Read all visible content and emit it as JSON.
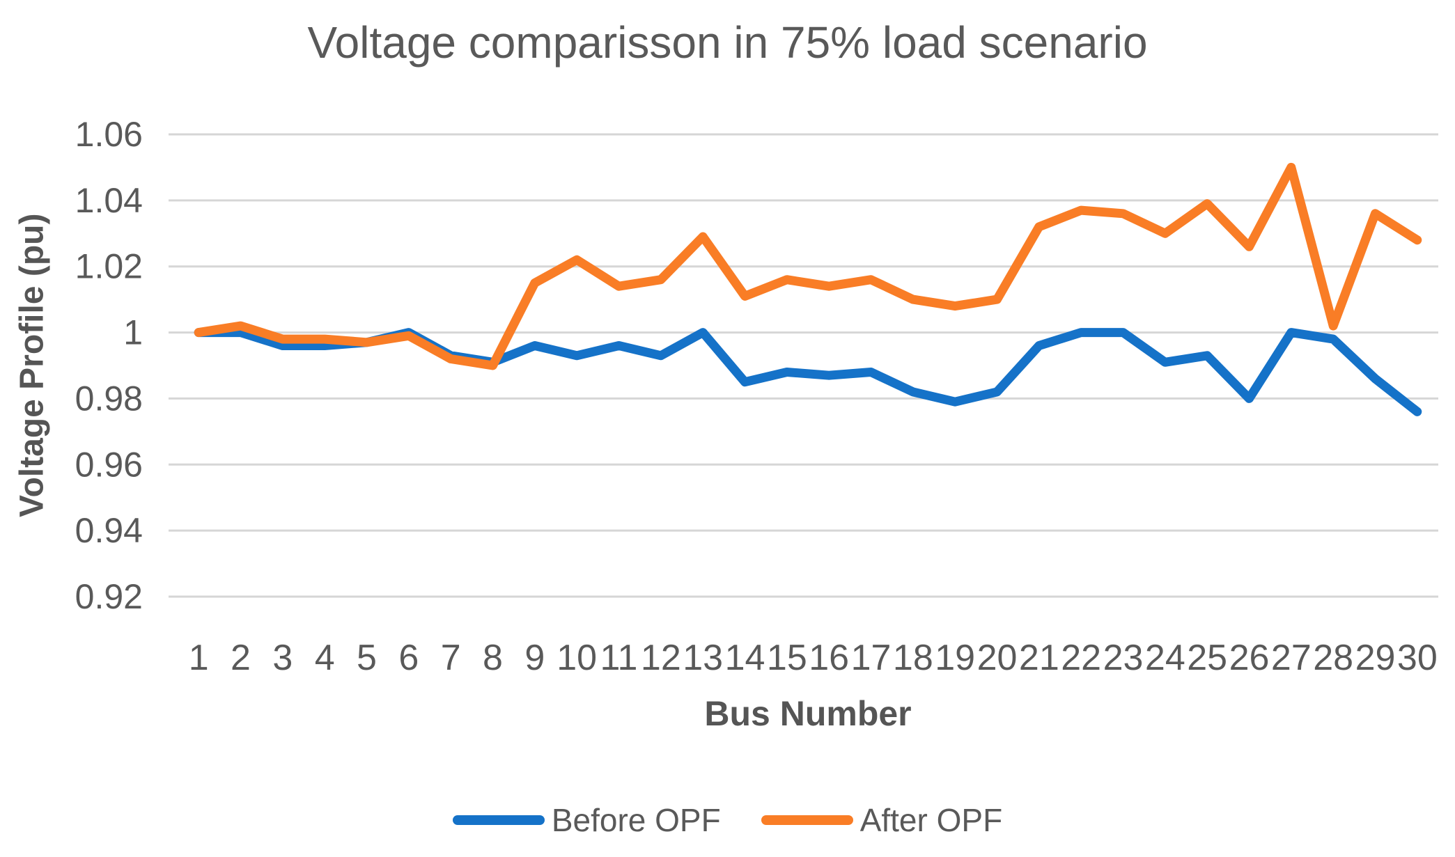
{
  "chart_data": {
    "type": "line",
    "title": "Voltage comparisson in 75% load scenario",
    "xlabel": "Bus Number",
    "ylabel": "Voltage Profile (pu)",
    "categories": [
      "1",
      "2",
      "3",
      "4",
      "5",
      "6",
      "7",
      "8",
      "9",
      "10",
      "11",
      "12",
      "13",
      "14",
      "15",
      "16",
      "17",
      "18",
      "19",
      "20",
      "21",
      "22",
      "23",
      "24",
      "25",
      "26",
      "27",
      "28",
      "29",
      "30"
    ],
    "series": [
      {
        "name": "Before OPF",
        "color": "#1572C8",
        "values": [
          1.0,
          1.0,
          0.996,
          0.996,
          0.997,
          1.0,
          0.993,
          0.991,
          0.996,
          0.993,
          0.996,
          0.993,
          1.0,
          0.985,
          0.988,
          0.987,
          0.988,
          0.982,
          0.979,
          0.982,
          0.996,
          1.0,
          1.0,
          0.991,
          0.993,
          0.98,
          1.0,
          0.998,
          0.986,
          0.976
        ]
      },
      {
        "name": "After OPF",
        "color": "#F97D26",
        "values": [
          1.0,
          1.002,
          0.998,
          0.998,
          0.997,
          0.999,
          0.992,
          0.99,
          1.015,
          1.022,
          1.014,
          1.016,
          1.029,
          1.011,
          1.016,
          1.014,
          1.016,
          1.01,
          1.008,
          1.01,
          1.032,
          1.037,
          1.036,
          1.03,
          1.039,
          1.026,
          1.05,
          1.002,
          1.036,
          1.028
        ]
      }
    ],
    "ylim": [
      0.92,
      1.06
    ],
    "y_ticks": [
      {
        "value": 1.06,
        "label": "1.06"
      },
      {
        "value": 1.04,
        "label": "1.04"
      },
      {
        "value": 1.02,
        "label": "1.02"
      },
      {
        "value": 1.0,
        "label": "1"
      },
      {
        "value": 0.98,
        "label": "0.98"
      },
      {
        "value": 0.96,
        "label": "0.96"
      },
      {
        "value": 0.94,
        "label": "0.94"
      },
      {
        "value": 0.92,
        "label": "0.92"
      }
    ],
    "grid": "horizontal",
    "legend_position": "bottom"
  },
  "styles": {
    "grid_color": "#D6D6D6",
    "text_color": "#595959",
    "background": "#FFFFFF"
  }
}
